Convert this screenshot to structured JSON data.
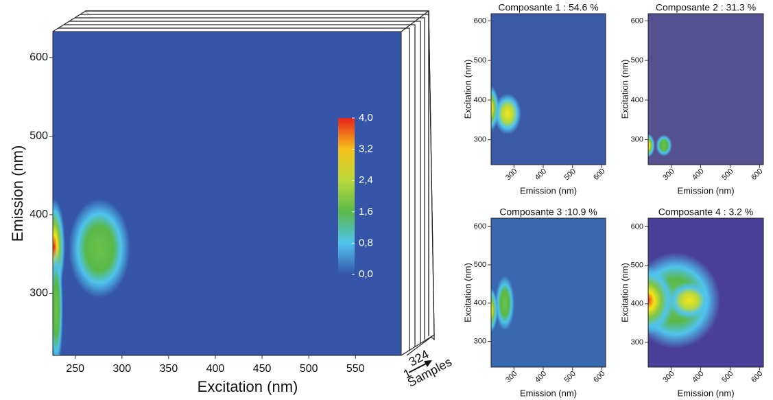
{
  "chart_data": [
    {
      "type": "heatmap",
      "xlabel": "Excitation (nm)",
      "ylabel": "Emission (nm)",
      "xlim": [
        226,
        599
      ],
      "xticks": [
        250,
        300,
        350,
        400,
        450,
        500,
        550
      ],
      "ylim": [
        221,
        633
      ],
      "yticks": [
        300,
        400,
        500,
        600
      ],
      "colorbar": {
        "lim": [
          0,
          4
        ],
        "ticks": [
          {
            "value": 0,
            "label": "0,0"
          },
          {
            "value": 0.8,
            "label": "0,8"
          },
          {
            "value": 1.6,
            "label": "1,6"
          },
          {
            "value": 2.4,
            "label": "2,4"
          },
          {
            "value": 3.2,
            "label": "3,2"
          },
          {
            "value": 4,
            "label": "4,0"
          }
        ]
      },
      "annotations": [
        "1",
        "324",
        "Samples"
      ]
    },
    {
      "type": "heatmap",
      "title": "Composante 1 : 54.6 %",
      "xlabel": "Emission (nm)",
      "ylabel": "Excitation (nm)",
      "xlim": [
        222,
        613
      ],
      "xticks": [
        300,
        400,
        500,
        600
      ],
      "ylim": [
        237,
        618
      ],
      "yticks": [
        300,
        400,
        500,
        600
      ]
    },
    {
      "type": "heatmap",
      "title": "Composante 2 : 31.3 %",
      "xlabel": "Emission (nm)",
      "ylabel": "Excitation (nm)",
      "xlim": [
        222,
        613
      ],
      "xticks": [
        300,
        400,
        500,
        600
      ],
      "ylim": [
        237,
        618
      ],
      "yticks": [
        300,
        400,
        500,
        600
      ]
    },
    {
      "type": "heatmap",
      "title": "Composante 3 :10.9 %",
      "xlabel": "Emission (nm)",
      "ylabel": "Excitation (nm)",
      "xlim": [
        222,
        613
      ],
      "xticks": [
        300,
        400,
        500,
        600
      ],
      "ylim": [
        233,
        622
      ],
      "yticks": [
        300,
        400,
        500,
        600
      ]
    },
    {
      "type": "heatmap",
      "title": "Composante 4 : 3.2 %",
      "xlabel": "Emission (nm)",
      "ylabel": "Excitation (nm)",
      "xlim": [
        222,
        613
      ],
      "xticks": [
        300,
        400,
        500,
        600
      ],
      "ylim": [
        236,
        622
      ],
      "yticks": [
        300,
        400,
        500,
        600
      ]
    }
  ]
}
